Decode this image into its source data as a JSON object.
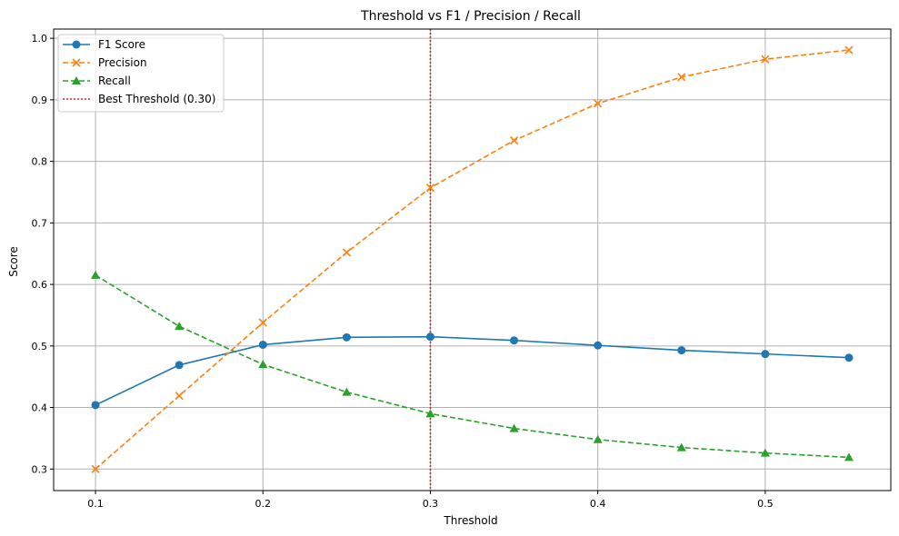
{
  "chart_data": {
    "type": "line",
    "title": "Threshold vs F1 / Precision / Recall",
    "xlabel": "Threshold",
    "ylabel": "Score",
    "x": [
      0.1,
      0.15,
      0.2,
      0.25,
      0.3,
      0.35,
      0.4,
      0.45,
      0.5,
      0.55
    ],
    "xticks": [
      "0.1",
      "0.2",
      "0.3",
      "0.4",
      "0.5"
    ],
    "yticks": [
      "0.3",
      "0.4",
      "0.5",
      "0.6",
      "0.7",
      "0.8",
      "0.9",
      "1.0"
    ],
    "xlim": [
      0.075,
      0.575
    ],
    "ylim": [
      0.265,
      1.015
    ],
    "grid": true,
    "legend_position": "top-left",
    "series": [
      {
        "name": "F1 Score",
        "color": "#1f77b4",
        "linestyle": "solid",
        "marker": "circle",
        "values": [
          0.404,
          0.469,
          0.502,
          0.514,
          0.515,
          0.509,
          0.501,
          0.493,
          0.487,
          0.481
        ]
      },
      {
        "name": "Precision",
        "color": "#ff7f0e",
        "linestyle": "dashed",
        "marker": "x",
        "values": [
          0.3,
          0.419,
          0.538,
          0.652,
          0.757,
          0.834,
          0.894,
          0.937,
          0.966,
          0.981
        ]
      },
      {
        "name": "Recall",
        "color": "#2ca02c",
        "linestyle": "dashed",
        "marker": "triangle",
        "values": [
          0.615,
          0.532,
          0.47,
          0.425,
          0.39,
          0.366,
          0.348,
          0.335,
          0.326,
          0.319
        ]
      }
    ],
    "vline": {
      "name": "Best Threshold (0.30)",
      "x": 0.3,
      "color": "#d62728",
      "linestyle": "dotted"
    }
  }
}
